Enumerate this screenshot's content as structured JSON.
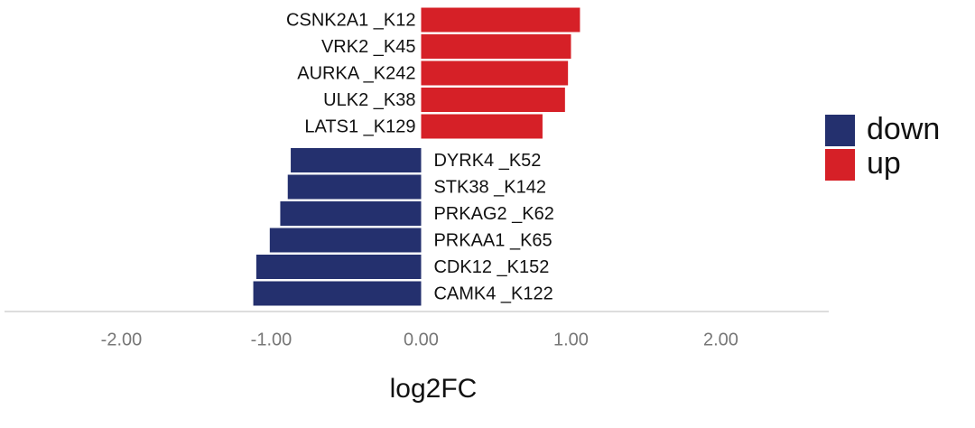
{
  "chart_data": {
    "type": "bar",
    "orientation": "horizontal",
    "categories": [
      "CSNK2A1 _K12",
      "VRK2 _K45",
      "AURKA _K242",
      "ULK2 _K38",
      "LATS1 _K129",
      "DYRK4 _K52",
      "STK38 _K142",
      "PRKAG2 _K62",
      "PRKAA1 _K65",
      "CDK12 _K152",
      "CAMK4 _K122"
    ],
    "series": [
      {
        "name": "down",
        "color": "#24306e",
        "values": [
          null,
          null,
          null,
          null,
          null,
          -0.87,
          -0.89,
          -0.94,
          -1.01,
          -1.1,
          -1.12
        ]
      },
      {
        "name": "up",
        "color": "#d62027",
        "values": [
          1.06,
          1.0,
          0.98,
          0.96,
          0.81,
          null,
          null,
          null,
          null,
          null,
          null
        ]
      }
    ],
    "xlabel": "log2FC",
    "xlim": [
      -2.78,
      2.72
    ],
    "xticks": [
      {
        "value": -2,
        "label": "-2.00"
      },
      {
        "value": -1,
        "label": "-1.00"
      },
      {
        "value": 0,
        "label": "0.00"
      },
      {
        "value": 1,
        "label": "1.00"
      },
      {
        "value": 2,
        "label": "2.00"
      }
    ],
    "legend": "right"
  }
}
